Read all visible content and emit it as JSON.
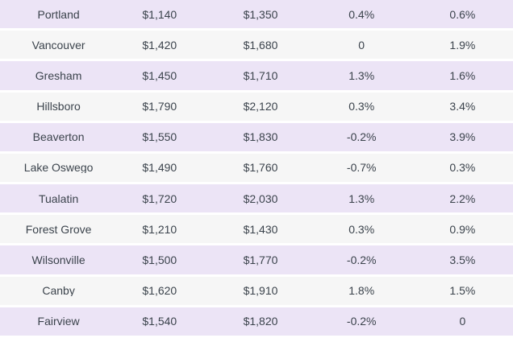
{
  "table": {
    "colors": {
      "striped_row": "#ece4f6",
      "plain_row": "#f6f6f6",
      "separator": "#ffffff",
      "text": "#3b434c"
    },
    "columns": [
      "city",
      "price_a",
      "price_b",
      "pct_change_a",
      "pct_change_b"
    ],
    "rows": [
      {
        "city": "Portland",
        "price_a": "$1,140",
        "price_b": "$1,350",
        "pct_change_a": "0.4%",
        "pct_change_b": "0.6%"
      },
      {
        "city": "Vancouver",
        "price_a": "$1,420",
        "price_b": "$1,680",
        "pct_change_a": "0",
        "pct_change_b": "1.9%"
      },
      {
        "city": "Gresham",
        "price_a": "$1,450",
        "price_b": "$1,710",
        "pct_change_a": "1.3%",
        "pct_change_b": "1.6%"
      },
      {
        "city": "Hillsboro",
        "price_a": "$1,790",
        "price_b": "$2,120",
        "pct_change_a": "0.3%",
        "pct_change_b": "3.4%"
      },
      {
        "city": "Beaverton",
        "price_a": "$1,550",
        "price_b": "$1,830",
        "pct_change_a": "-0.2%",
        "pct_change_b": "3.9%"
      },
      {
        "city": "Lake Oswego",
        "price_a": "$1,490",
        "price_b": "$1,760",
        "pct_change_a": "-0.7%",
        "pct_change_b": "0.3%"
      },
      {
        "city": "Tualatin",
        "price_a": "$1,720",
        "price_b": "$2,030",
        "pct_change_a": "1.3%",
        "pct_change_b": "2.2%"
      },
      {
        "city": "Forest Grove",
        "price_a": "$1,210",
        "price_b": "$1,430",
        "pct_change_a": "0.3%",
        "pct_change_b": "0.9%"
      },
      {
        "city": "Wilsonville",
        "price_a": "$1,500",
        "price_b": "$1,770",
        "pct_change_a": "-0.2%",
        "pct_change_b": "3.5%"
      },
      {
        "city": "Canby",
        "price_a": "$1,620",
        "price_b": "$1,910",
        "pct_change_a": "1.8%",
        "pct_change_b": "1.5%"
      },
      {
        "city": "Fairview",
        "price_a": "$1,540",
        "price_b": "$1,820",
        "pct_change_a": "-0.2%",
        "pct_change_b": "0"
      }
    ]
  }
}
